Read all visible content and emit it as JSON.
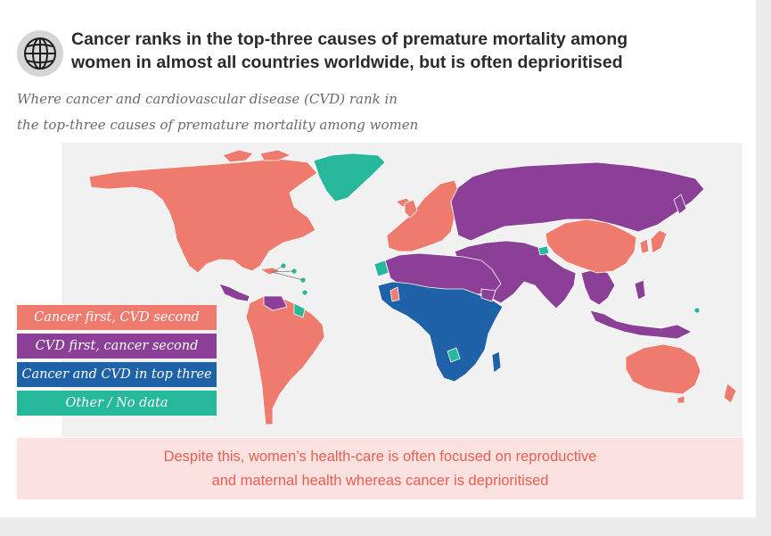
{
  "header": {
    "icon": "globe-icon",
    "title_lines": [
      "Cancer ranks in the top-three causes of premature mortality among",
      "women in almost all countries worldwide, but is often deprioritised"
    ],
    "subtitle_lines": [
      "Where cancer and cardiovascular disease (CVD) rank in",
      "the top-three causes of premature mortality among women"
    ]
  },
  "map": {
    "type": "choropleth-world",
    "categories": [
      {
        "key": "cancer_first",
        "label": "Cancer first, CVD second",
        "color": "#ef7b6f"
      },
      {
        "key": "cvd_first",
        "label": "CVD first, cancer second",
        "color": "#8b3f96"
      },
      {
        "key": "both_top3",
        "label": "Cancer and CVD in top three",
        "color": "#1f62a8"
      },
      {
        "key": "other",
        "label": "Other / No data",
        "color": "#26b89b"
      }
    ]
  },
  "callout": {
    "lines": [
      "Despite this, women’s health-care is often focused on reproductive",
      "and maternal health whereas cancer is deprioritised"
    ]
  }
}
